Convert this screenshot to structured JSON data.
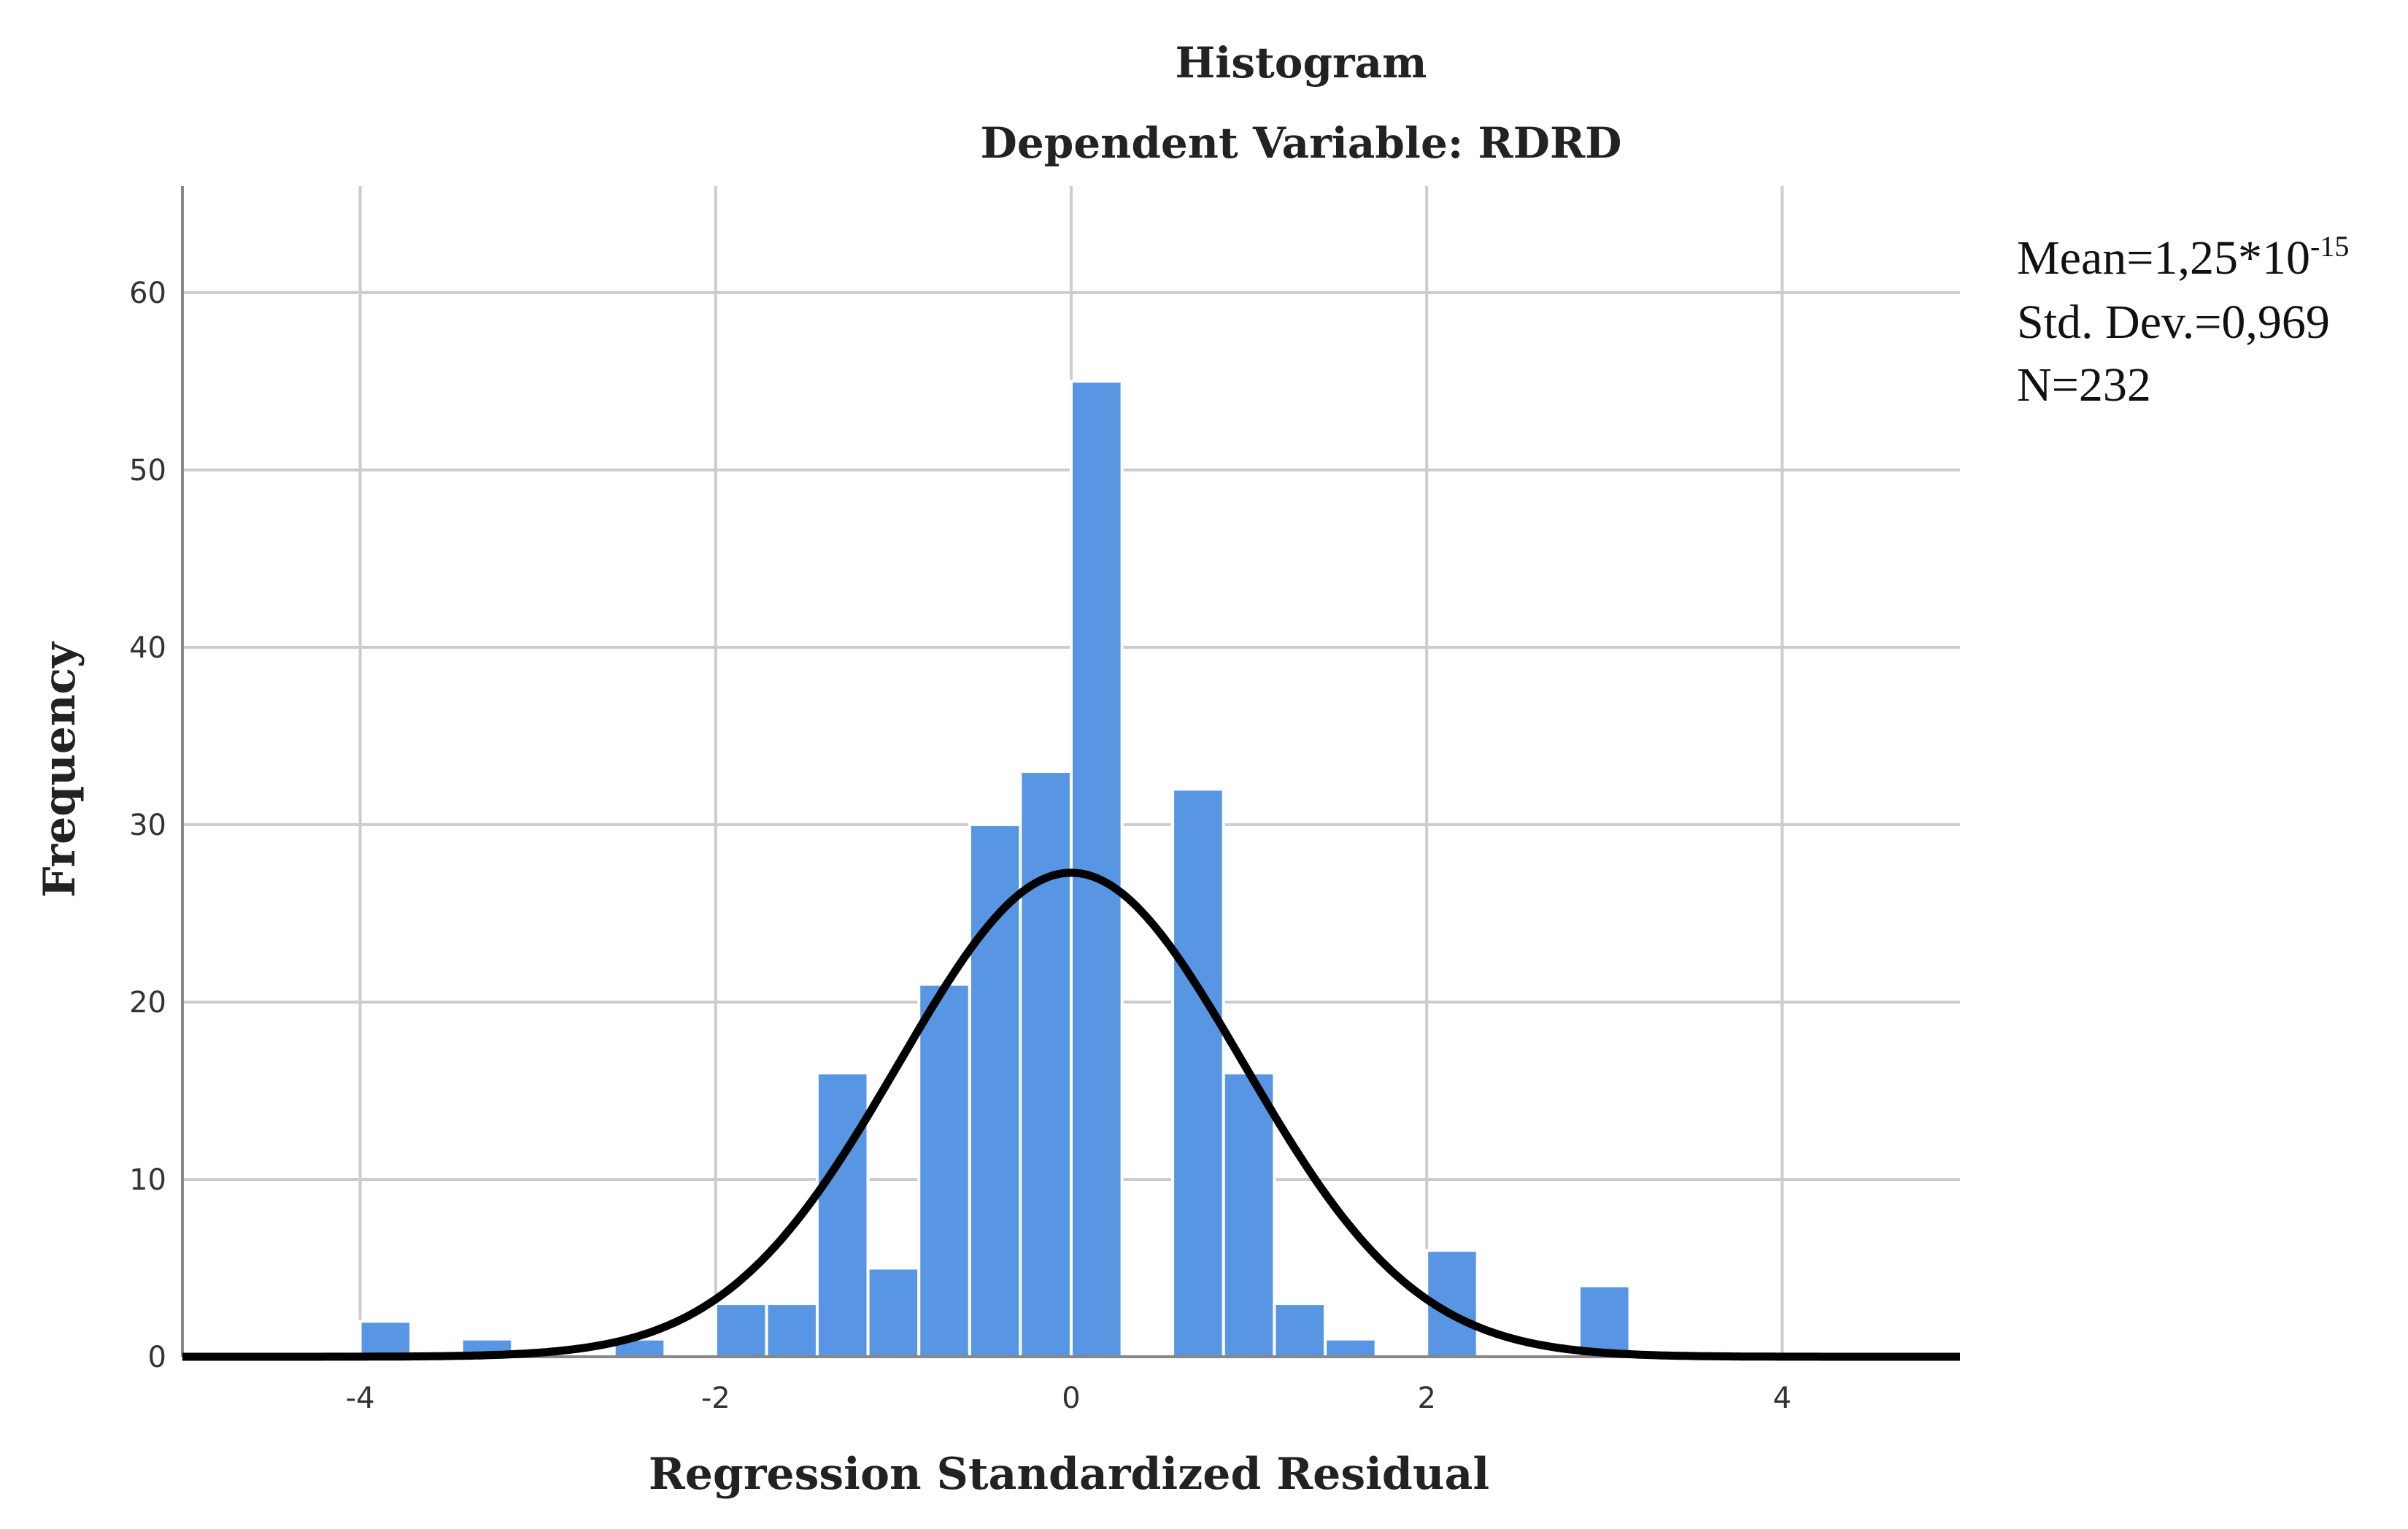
{
  "chart_data": {
    "type": "bar",
    "title": "Histogram",
    "subtitle": "Dependent Variable: RDRD",
    "xlabel": "Regression Standardized Residual",
    "ylabel": "Frequency",
    "xlim": [
      -5,
      5
    ],
    "ylim": [
      0,
      66
    ],
    "grid": true,
    "x_ticks": [
      -4,
      -2,
      0,
      2,
      4
    ],
    "x_tick_labels": [
      "-4",
      "-2",
      "0",
      "2",
      "4"
    ],
    "y_ticks": [
      0,
      10,
      20,
      30,
      40,
      50,
      60
    ],
    "y_tick_labels": [
      "0",
      "10",
      "20",
      "30",
      "40",
      "50",
      "60"
    ],
    "bin_width": 0.2857,
    "bin_starts": [
      -4.0,
      -3.429,
      -2.571,
      -2.0,
      -1.714,
      -1.429,
      -1.143,
      -0.857,
      -0.571,
      -0.286,
      0.0,
      0.571,
      0.857,
      1.143,
      1.429,
      2.0,
      2.857
    ],
    "values": [
      2,
      1,
      1,
      3,
      3,
      16,
      5,
      21,
      30,
      33,
      55,
      32,
      16,
      3,
      1,
      6,
      4
    ],
    "normal_curve": {
      "mean": 0,
      "sd": 0.969,
      "n": 232
    },
    "stats": {
      "mean_label": "Mean=1,25*10",
      "mean_exponent": "-15",
      "std_label": "Std. Dev.=0,969",
      "n_label": "N=232"
    },
    "colors": {
      "bar": "#5896e3",
      "bar_edge": "#ffffff",
      "grid": "#cccccc",
      "curve": "#000000",
      "axis": "#888888"
    }
  }
}
